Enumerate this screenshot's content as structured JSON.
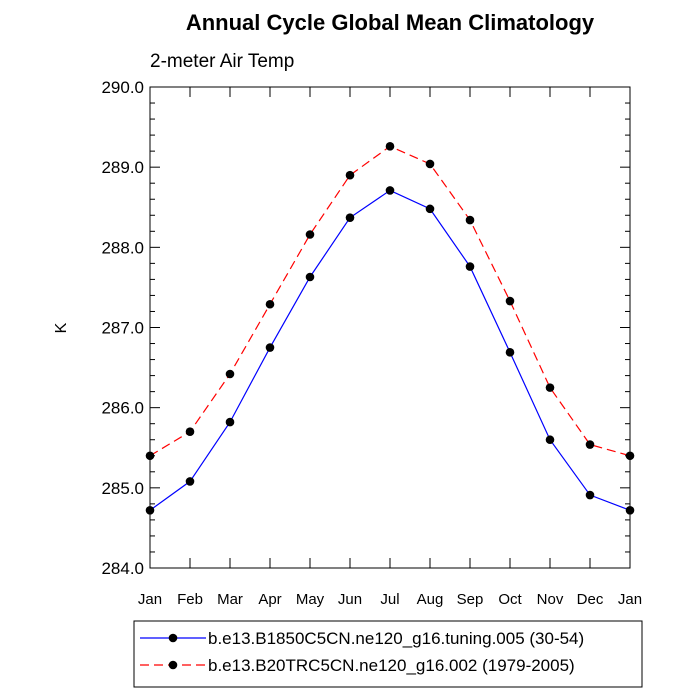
{
  "chart_data": {
    "type": "line",
    "title": "Annual Cycle Global Mean Climatology",
    "subtitle": "2-meter Air Temp",
    "xlabel": "",
    "ylabel": "K",
    "categories": [
      "Jan",
      "Feb",
      "Mar",
      "Apr",
      "May",
      "Jun",
      "Jul",
      "Aug",
      "Sep",
      "Oct",
      "Nov",
      "Dec",
      "Jan"
    ],
    "ylim": [
      284.0,
      290.0
    ],
    "yticks": [
      284.0,
      285.0,
      286.0,
      287.0,
      288.0,
      289.0,
      290.0
    ],
    "ytick_labels": [
      "284.0",
      "285.0",
      "286.0",
      "287.0",
      "288.0",
      "289.0",
      "290.0"
    ],
    "grid": false,
    "legend_position": "bottom",
    "series": [
      {
        "name": "b.e13.B1850C5CN.ne120_g16.tuning.005 (30-54)",
        "color": "#0000ff",
        "line_style": "solid",
        "marker": "filled-circle",
        "values": [
          284.72,
          285.08,
          285.82,
          286.75,
          287.63,
          288.37,
          288.71,
          288.48,
          287.76,
          286.69,
          285.6,
          284.91,
          284.72
        ]
      },
      {
        "name": "b.e13.B20TRC5CN.ne120_g16.002 (1979-2005)",
        "color": "#ff0000",
        "line_style": "dashed",
        "marker": "filled-circle",
        "values": [
          285.4,
          285.7,
          286.42,
          287.29,
          288.16,
          288.9,
          289.26,
          289.04,
          288.34,
          287.33,
          286.25,
          285.54,
          285.4
        ]
      }
    ]
  }
}
